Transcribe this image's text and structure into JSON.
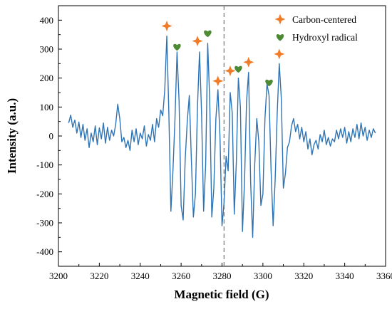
{
  "chart_data": {
    "type": "line",
    "title": "",
    "xlabel": "Magnetic field (G)",
    "ylabel": "Intensity (a.u.)",
    "xlim": [
      3200,
      3360
    ],
    "ylim": [
      -450,
      450
    ],
    "x_ticks": [
      3200,
      3220,
      3240,
      3260,
      3280,
      3300,
      3320,
      3340,
      3360
    ],
    "y_ticks": [
      -400,
      -300,
      -200,
      -100,
      0,
      100,
      200,
      300,
      400
    ],
    "grid": false,
    "legend_position": "top-right",
    "reference_line": {
      "x": 3281,
      "style": "dashed",
      "color": "#808080"
    },
    "series": [
      {
        "color": "#2e74b5",
        "points": [
          [
            3205,
            45
          ],
          [
            3206,
            72
          ],
          [
            3207,
            30
          ],
          [
            3208,
            55
          ],
          [
            3209,
            10
          ],
          [
            3210,
            48
          ],
          [
            3211,
            -5
          ],
          [
            3212,
            40
          ],
          [
            3213,
            -15
          ],
          [
            3214,
            25
          ],
          [
            3215,
            -40
          ],
          [
            3216,
            10
          ],
          [
            3217,
            -20
          ],
          [
            3218,
            35
          ],
          [
            3219,
            -30
          ],
          [
            3220,
            28
          ],
          [
            3221,
            -10
          ],
          [
            3222,
            45
          ],
          [
            3223,
            -25
          ],
          [
            3224,
            30
          ],
          [
            3225,
            -15
          ],
          [
            3226,
            20
          ],
          [
            3227,
            0
          ],
          [
            3228,
            40
          ],
          [
            3229,
            110
          ],
          [
            3230,
            60
          ],
          [
            3231,
            -20
          ],
          [
            3232,
            -5
          ],
          [
            3233,
            -40
          ],
          [
            3234,
            -15
          ],
          [
            3235,
            -50
          ],
          [
            3236,
            20
          ],
          [
            3237,
            -20
          ],
          [
            3238,
            25
          ],
          [
            3239,
            -30
          ],
          [
            3240,
            10
          ],
          [
            3241,
            -10
          ],
          [
            3242,
            35
          ],
          [
            3243,
            -35
          ],
          [
            3244,
            5
          ],
          [
            3245,
            -15
          ],
          [
            3246,
            40
          ],
          [
            3247,
            -20
          ],
          [
            3248,
            60
          ],
          [
            3249,
            30
          ],
          [
            3250,
            90
          ],
          [
            3251,
            70
          ],
          [
            3252,
            160
          ],
          [
            3253,
            345
          ],
          [
            3254,
            80
          ],
          [
            3255,
            -260
          ],
          [
            3256,
            -120
          ],
          [
            3257,
            60
          ],
          [
            3258,
            290
          ],
          [
            3259,
            120
          ],
          [
            3260,
            -240
          ],
          [
            3261,
            -290
          ],
          [
            3262,
            -80
          ],
          [
            3263,
            50
          ],
          [
            3264,
            140
          ],
          [
            3265,
            -80
          ],
          [
            3266,
            -280
          ],
          [
            3267,
            -200
          ],
          [
            3268,
            100
          ],
          [
            3269,
            290
          ],
          [
            3270,
            80
          ],
          [
            3271,
            -260
          ],
          [
            3272,
            -100
          ],
          [
            3273,
            320
          ],
          [
            3274,
            120
          ],
          [
            3275,
            -280
          ],
          [
            3276,
            -180
          ],
          [
            3277,
            60
          ],
          [
            3278,
            160
          ],
          [
            3279,
            0
          ],
          [
            3280,
            -310
          ],
          [
            3281,
            -230
          ],
          [
            3282,
            -70
          ],
          [
            3283,
            -120
          ],
          [
            3284,
            150
          ],
          [
            3285,
            80
          ],
          [
            3286,
            -270
          ],
          [
            3287,
            -90
          ],
          [
            3288,
            200
          ],
          [
            3289,
            100
          ],
          [
            3290,
            -330
          ],
          [
            3291,
            -160
          ],
          [
            3292,
            120
          ],
          [
            3293,
            220
          ],
          [
            3294,
            -160
          ],
          [
            3295,
            -350
          ],
          [
            3296,
            -100
          ],
          [
            3297,
            60
          ],
          [
            3298,
            -20
          ],
          [
            3299,
            -240
          ],
          [
            3300,
            -200
          ],
          [
            3301,
            60
          ],
          [
            3302,
            180
          ],
          [
            3303,
            140
          ],
          [
            3304,
            -120
          ],
          [
            3305,
            -310
          ],
          [
            3306,
            -150
          ],
          [
            3307,
            80
          ],
          [
            3308,
            250
          ],
          [
            3309,
            130
          ],
          [
            3310,
            -180
          ],
          [
            3311,
            -130
          ],
          [
            3312,
            -40
          ],
          [
            3313,
            -20
          ],
          [
            3314,
            35
          ],
          [
            3315,
            60
          ],
          [
            3316,
            15
          ],
          [
            3317,
            40
          ],
          [
            3318,
            -10
          ],
          [
            3319,
            30
          ],
          [
            3320,
            -20
          ],
          [
            3321,
            15
          ],
          [
            3322,
            -45
          ],
          [
            3323,
            -10
          ],
          [
            3324,
            -65
          ],
          [
            3325,
            -30
          ],
          [
            3326,
            -15
          ],
          [
            3327,
            -45
          ],
          [
            3328,
            5
          ],
          [
            3329,
            -20
          ],
          [
            3330,
            20
          ],
          [
            3331,
            -30
          ],
          [
            3332,
            -5
          ],
          [
            3333,
            -35
          ],
          [
            3334,
            -10
          ],
          [
            3335,
            -20
          ],
          [
            3336,
            20
          ],
          [
            3337,
            -10
          ],
          [
            3338,
            25
          ],
          [
            3339,
            -5
          ],
          [
            3340,
            30
          ],
          [
            3341,
            -25
          ],
          [
            3342,
            15
          ],
          [
            3343,
            -20
          ],
          [
            3344,
            25
          ],
          [
            3345,
            -5
          ],
          [
            3346,
            40
          ],
          [
            3347,
            -10
          ],
          [
            3348,
            45
          ],
          [
            3349,
            0
          ],
          [
            3350,
            30
          ],
          [
            3351,
            -15
          ],
          [
            3352,
            20
          ],
          [
            3353,
            -5
          ],
          [
            3354,
            25
          ],
          [
            3355,
            10
          ]
        ]
      }
    ],
    "marker_groups": [
      {
        "name": "Carbon-centered",
        "marker": "star4",
        "color": "#f07c2a",
        "points": [
          [
            3253,
            380
          ],
          [
            3268,
            328
          ],
          [
            3278,
            190
          ],
          [
            3284,
            225
          ],
          [
            3293,
            255
          ],
          [
            3308,
            283
          ]
        ]
      },
      {
        "name": "Hydroxyl radical",
        "marker": "heart",
        "color": "#4e8a34",
        "points": [
          [
            3258,
            308
          ],
          [
            3273,
            355
          ],
          [
            3288,
            232
          ],
          [
            3303,
            185
          ]
        ]
      }
    ]
  }
}
